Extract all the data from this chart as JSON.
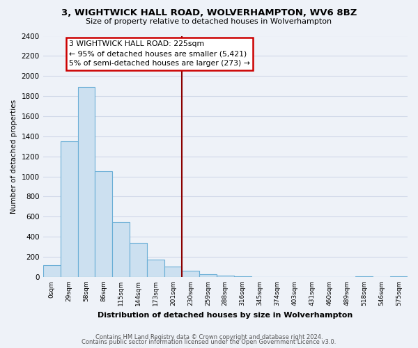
{
  "title": "3, WIGHTWICK HALL ROAD, WOLVERHAMPTON, WV6 8BZ",
  "subtitle": "Size of property relative to detached houses in Wolverhampton",
  "xlabel": "Distribution of detached houses by size in Wolverhampton",
  "ylabel": "Number of detached properties",
  "bin_labels": [
    "0sqm",
    "29sqm",
    "58sqm",
    "86sqm",
    "115sqm",
    "144sqm",
    "173sqm",
    "201sqm",
    "230sqm",
    "259sqm",
    "288sqm",
    "316sqm",
    "345sqm",
    "374sqm",
    "403sqm",
    "431sqm",
    "460sqm",
    "489sqm",
    "518sqm",
    "546sqm",
    "575sqm"
  ],
  "bar_heights": [
    120,
    1350,
    1890,
    1050,
    550,
    340,
    170,
    105,
    60,
    28,
    10,
    4,
    2,
    1,
    0,
    0,
    0,
    0,
    5,
    0,
    5
  ],
  "bar_color": "#cce0f0",
  "bar_edge_color": "#6aaed6",
  "vline_x": 7.5,
  "vline_color": "#8b0000",
  "annotation_line1": "3 WIGHTWICK HALL ROAD: 225sqm",
  "annotation_line2": "← 95% of detached houses are smaller (5,421)",
  "annotation_line3": "5% of semi-detached houses are larger (273) →",
  "annotation_box_color": "white",
  "annotation_box_edge": "#cc0000",
  "ylim": [
    0,
    2400
  ],
  "yticks": [
    0,
    200,
    400,
    600,
    800,
    1000,
    1200,
    1400,
    1600,
    1800,
    2000,
    2200,
    2400
  ],
  "footer_line1": "Contains HM Land Registry data © Crown copyright and database right 2024.",
  "footer_line2": "Contains public sector information licensed under the Open Government Licence v3.0.",
  "background_color": "#eef2f8",
  "grid_color": "#d0d8e8"
}
